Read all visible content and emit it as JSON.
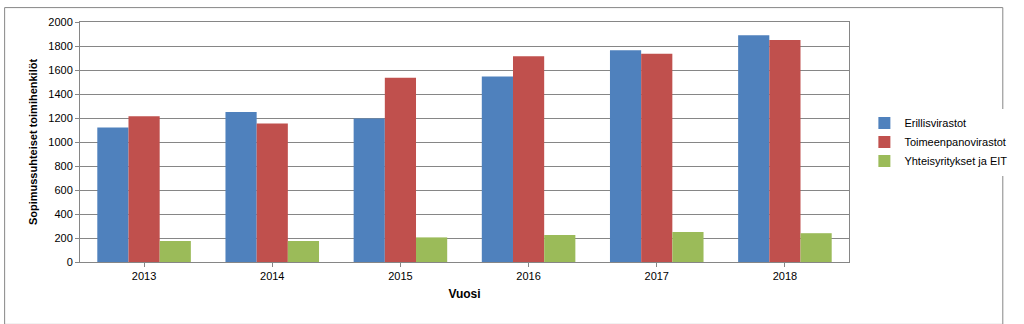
{
  "chart_data": {
    "type": "bar",
    "categories": [
      "2013",
      "2014",
      "2015",
      "2016",
      "2017",
      "2018"
    ],
    "series": [
      {
        "name": "Erillisvirastot",
        "color": "#4F81BD",
        "values": [
          1120,
          1250,
          1195,
          1545,
          1765,
          1890
        ]
      },
      {
        "name": "Toimeenpanovirastot",
        "color": "#C0504D",
        "values": [
          1215,
          1155,
          1535,
          1715,
          1735,
          1850
        ]
      },
      {
        "name": "Yhteisyritykset ja EIT",
        "color": "#9BBB59",
        "values": [
          175,
          175,
          205,
          225,
          250,
          240
        ]
      }
    ],
    "x_label": "Vuosi",
    "y_label": "Sopimussuhteiset toimihenkilöt",
    "ylim": [
      0,
      2000
    ],
    "yticks": [
      0,
      200,
      400,
      600,
      800,
      1000,
      1200,
      1400,
      1600,
      1800,
      2000
    ],
    "grid": true,
    "legend": "right"
  }
}
